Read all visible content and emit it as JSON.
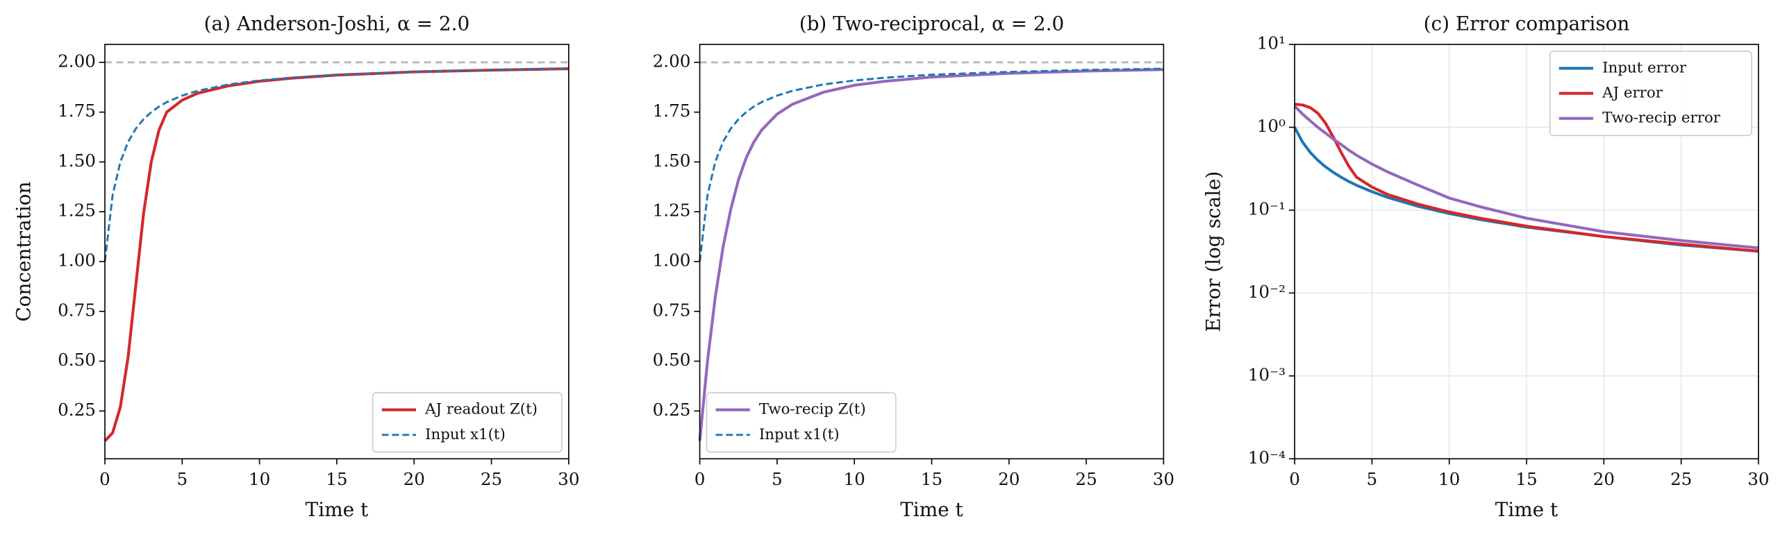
{
  "chart_data": [
    {
      "type": "line",
      "title": "(a) Anderson-Joshi, α = 2.0",
      "xlabel": "Time t",
      "ylabel": "Concentration",
      "x": [
        0,
        0.5,
        1,
        1.5,
        2,
        2.5,
        3,
        3.5,
        4,
        5,
        6,
        8,
        10,
        12,
        15,
        20,
        25,
        30
      ],
      "series": [
        {
          "name": "AJ readout Z(t)",
          "color": "#d62728",
          "dashed": false,
          "values": [
            0.1,
            0.14,
            0.27,
            0.52,
            0.88,
            1.24,
            1.5,
            1.66,
            1.75,
            1.81,
            1.845,
            1.882,
            1.905,
            1.92,
            1.936,
            1.952,
            1.961,
            1.968
          ]
        },
        {
          "name": "Input x1(t)",
          "color": "#1f77b4",
          "dashed": true,
          "values": [
            1.0,
            1.333,
            1.5,
            1.6,
            1.667,
            1.714,
            1.75,
            1.778,
            1.8,
            1.833,
            1.857,
            1.889,
            1.909,
            1.923,
            1.938,
            1.952,
            1.962,
            1.968
          ]
        }
      ],
      "reference_line": 2,
      "xlim": [
        0,
        30
      ],
      "xticks": [
        0,
        5,
        10,
        15,
        20,
        25,
        30
      ],
      "ylim": [
        0.01,
        2.09
      ],
      "yticks": [
        {
          "value": 0.25,
          "label": "0.25"
        },
        {
          "value": 0.5,
          "label": "0.50"
        },
        {
          "value": 0.75,
          "label": "0.75"
        },
        {
          "value": 1,
          "label": "1.00"
        },
        {
          "value": 1.25,
          "label": "1.25"
        },
        {
          "value": 1.5,
          "label": "1.50"
        },
        {
          "value": 1.75,
          "label": "1.75"
        },
        {
          "value": 2,
          "label": "2.00"
        }
      ],
      "legend": "lower right",
      "grid": false
    },
    {
      "type": "line",
      "title": "(b) Two-reciprocal, α = 2.0",
      "xlabel": "Time t",
      "x": [
        0,
        0.5,
        1,
        1.5,
        2,
        2.5,
        3,
        3.5,
        4,
        5,
        6,
        8,
        10,
        12,
        15,
        20,
        25,
        30
      ],
      "series": [
        {
          "name": "Two-recip Z(t)",
          "color": "#9467bd",
          "dashed": false,
          "values": [
            0.1,
            0.5,
            0.82,
            1.07,
            1.26,
            1.41,
            1.52,
            1.6,
            1.66,
            1.74,
            1.79,
            1.85,
            1.885,
            1.905,
            1.926,
            1.945,
            1.956,
            1.964
          ]
        },
        {
          "name": "Input x1(t)",
          "color": "#1f77b4",
          "dashed": true,
          "values": [
            1.0,
            1.333,
            1.5,
            1.6,
            1.667,
            1.714,
            1.75,
            1.778,
            1.8,
            1.833,
            1.857,
            1.889,
            1.909,
            1.923,
            1.938,
            1.952,
            1.962,
            1.968
          ]
        }
      ],
      "reference_line": 2,
      "xlim": [
        0,
        30
      ],
      "xticks": [
        0,
        5,
        10,
        15,
        20,
        25,
        30
      ],
      "ylim": [
        0.01,
        2.09
      ],
      "yticks": [
        {
          "value": 0.25,
          "label": "0.25"
        },
        {
          "value": 0.5,
          "label": "0.50"
        },
        {
          "value": 0.75,
          "label": "0.75"
        },
        {
          "value": 1,
          "label": "1.00"
        },
        {
          "value": 1.25,
          "label": "1.25"
        },
        {
          "value": 1.5,
          "label": "1.50"
        },
        {
          "value": 1.75,
          "label": "1.75"
        },
        {
          "value": 2,
          "label": "2.00"
        }
      ],
      "legend": "lower left",
      "grid": false
    },
    {
      "type": "line",
      "title": "(c) Error comparison",
      "xlabel": "Time t",
      "ylabel": "Error (log scale)",
      "x": [
        0,
        0.5,
        1,
        1.5,
        2,
        2.5,
        3,
        3.5,
        4,
        5,
        6,
        8,
        10,
        12,
        15,
        20,
        25,
        30
      ],
      "series": [
        {
          "name": "Input error",
          "color": "#1f77b4",
          "dashed": false,
          "values": [
            1.0,
            0.667,
            0.5,
            0.4,
            0.333,
            0.286,
            0.25,
            0.222,
            0.2,
            0.167,
            0.143,
            0.111,
            0.091,
            0.077,
            0.0625,
            0.048,
            0.038,
            0.032
          ]
        },
        {
          "name": "AJ error",
          "color": "#d62728",
          "dashed": false,
          "values": [
            1.9,
            1.86,
            1.73,
            1.48,
            1.12,
            0.76,
            0.5,
            0.34,
            0.25,
            0.19,
            0.155,
            0.118,
            0.095,
            0.08,
            0.064,
            0.048,
            0.039,
            0.032
          ]
        },
        {
          "name": "Two-recip error",
          "color": "#9467bd",
          "dashed": false,
          "values": [
            1.8,
            1.45,
            1.2,
            1.0,
            0.85,
            0.72,
            0.62,
            0.53,
            0.46,
            0.36,
            0.29,
            0.2,
            0.14,
            0.11,
            0.08,
            0.055,
            0.043,
            0.035
          ]
        }
      ],
      "xlim": [
        0,
        30
      ],
      "xticks": [
        0,
        5,
        10,
        15,
        20,
        25,
        30
      ],
      "yscale": "log",
      "ylim": [
        0.0001,
        10
      ],
      "yticks": [
        {
          "value": 0.0001,
          "label": "10⁻⁴"
        },
        {
          "value": 0.001,
          "label": "10⁻³"
        },
        {
          "value": 0.01,
          "label": "10⁻²"
        },
        {
          "value": 0.1,
          "label": "10⁻¹"
        },
        {
          "value": 1,
          "label": "10⁰"
        },
        {
          "value": 10,
          "label": "10¹"
        }
      ],
      "legend": "upper right",
      "grid": true
    }
  ]
}
